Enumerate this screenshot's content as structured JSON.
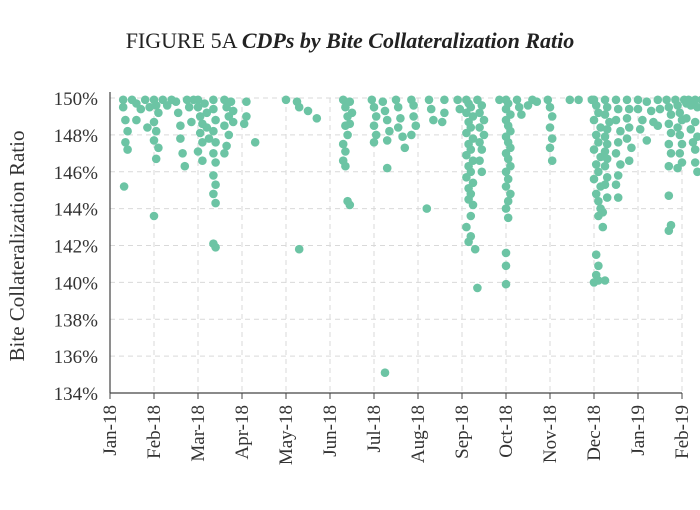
{
  "figure": {
    "label": "FIGURE 5A",
    "title": "CDPs by Bite Collateralization Ratio"
  },
  "colors": {
    "point": "#6cc4a4",
    "grid": "#d9d9d9",
    "axis": "#444444"
  },
  "chart_data": {
    "type": "scatter",
    "title": "FIGURE 5A CDPs by Bite Collateralization Ratio",
    "xlabel": "",
    "ylabel": "Bite Collateralization Ratio",
    "ylim": [
      134,
      150
    ],
    "xlim": [
      0,
      13
    ],
    "grid": true,
    "y_ticks": [
      134,
      136,
      138,
      140,
      142,
      144,
      146,
      148,
      150
    ],
    "y_tick_labels": [
      "134%",
      "136%",
      "138%",
      "140%",
      "142%",
      "144%",
      "146%",
      "148%",
      "150%"
    ],
    "x_ticks": [
      0,
      1,
      2,
      3,
      4,
      5,
      6,
      7,
      8,
      9,
      10,
      11,
      12,
      13
    ],
    "x_tick_labels": [
      "Jan-18",
      "Feb-18",
      "Mar-18",
      "Apr-18",
      "May-18",
      "Jun-18",
      "Jul-18",
      "Aug-18",
      "Sep-18",
      "Oct-18",
      "Nov-18",
      "Dec-18",
      "Jan-19",
      "Feb-19"
    ],
    "x_unit": "months since Jan-2018",
    "points": [
      [
        0.3,
        149.9
      ],
      [
        0.3,
        149.5
      ],
      [
        0.35,
        148.8
      ],
      [
        0.4,
        148.2
      ],
      [
        0.35,
        147.6
      ],
      [
        0.4,
        147.2
      ],
      [
        0.32,
        145.2
      ],
      [
        0.5,
        149.9
      ],
      [
        0.6,
        149.7
      ],
      [
        0.7,
        149.4
      ],
      [
        0.6,
        148.8
      ],
      [
        0.8,
        149.9
      ],
      [
        0.9,
        149.5
      ],
      [
        0.85,
        148.4
      ],
      [
        1.0,
        149.9
      ],
      [
        1.05,
        149.6
      ],
      [
        1.1,
        149.2
      ],
      [
        1.0,
        148.7
      ],
      [
        1.05,
        148.2
      ],
      [
        1.0,
        147.7
      ],
      [
        1.1,
        147.3
      ],
      [
        1.05,
        146.7
      ],
      [
        1.0,
        143.6
      ],
      [
        1.2,
        149.9
      ],
      [
        1.3,
        149.6
      ],
      [
        1.4,
        149.9
      ],
      [
        1.5,
        149.8
      ],
      [
        1.55,
        149.2
      ],
      [
        1.6,
        148.5
      ],
      [
        1.6,
        147.8
      ],
      [
        1.65,
        147.0
      ],
      [
        1.7,
        146.3
      ],
      [
        1.75,
        149.9
      ],
      [
        1.8,
        149.5
      ],
      [
        1.85,
        148.7
      ],
      [
        1.9,
        149.9
      ],
      [
        2.0,
        149.9
      ],
      [
        2.0,
        149.5
      ],
      [
        2.05,
        149.0
      ],
      [
        2.1,
        148.6
      ],
      [
        2.05,
        148.1
      ],
      [
        2.1,
        147.6
      ],
      [
        2.0,
        147.1
      ],
      [
        2.1,
        146.6
      ],
      [
        2.15,
        149.7
      ],
      [
        2.2,
        149.2
      ],
      [
        2.2,
        148.4
      ],
      [
        2.25,
        147.8
      ],
      [
        2.35,
        149.9
      ],
      [
        2.35,
        149.4
      ],
      [
        2.4,
        148.8
      ],
      [
        2.35,
        148.2
      ],
      [
        2.4,
        147.6
      ],
      [
        2.35,
        147.0
      ],
      [
        2.4,
        146.5
      ],
      [
        2.35,
        145.8
      ],
      [
        2.4,
        145.3
      ],
      [
        2.35,
        144.8
      ],
      [
        2.4,
        144.3
      ],
      [
        2.35,
        142.1
      ],
      [
        2.4,
        141.9
      ],
      [
        2.6,
        149.9
      ],
      [
        2.65,
        149.5
      ],
      [
        2.7,
        149.0
      ],
      [
        2.6,
        148.5
      ],
      [
        2.7,
        148.0
      ],
      [
        2.65,
        147.4
      ],
      [
        2.6,
        147.0
      ],
      [
        2.75,
        149.8
      ],
      [
        2.8,
        149.3
      ],
      [
        2.8,
        148.7
      ],
      [
        3.1,
        149.8
      ],
      [
        3.1,
        149.0
      ],
      [
        3.05,
        148.6
      ],
      [
        3.3,
        147.6
      ],
      [
        4.0,
        149.9
      ],
      [
        4.25,
        149.8
      ],
      [
        4.3,
        149.5
      ],
      [
        4.5,
        149.3
      ],
      [
        4.7,
        148.9
      ],
      [
        4.3,
        141.8
      ],
      [
        5.3,
        149.9
      ],
      [
        5.35,
        149.5
      ],
      [
        5.4,
        149.0
      ],
      [
        5.35,
        148.5
      ],
      [
        5.4,
        148.0
      ],
      [
        5.3,
        147.5
      ],
      [
        5.35,
        147.1
      ],
      [
        5.3,
        146.6
      ],
      [
        5.35,
        146.3
      ],
      [
        5.45,
        149.8
      ],
      [
        5.5,
        149.2
      ],
      [
        5.45,
        148.6
      ],
      [
        5.4,
        144.4
      ],
      [
        5.45,
        144.2
      ],
      [
        5.95,
        149.9
      ],
      [
        6.0,
        149.5
      ],
      [
        6.05,
        149.0
      ],
      [
        6.0,
        148.5
      ],
      [
        6.05,
        148.0
      ],
      [
        6.0,
        147.6
      ],
      [
        6.2,
        149.8
      ],
      [
        6.25,
        149.3
      ],
      [
        6.3,
        148.8
      ],
      [
        6.35,
        148.2
      ],
      [
        6.3,
        147.7
      ],
      [
        6.3,
        146.2
      ],
      [
        6.25,
        135.1
      ],
      [
        6.5,
        149.9
      ],
      [
        6.55,
        149.5
      ],
      [
        6.6,
        148.9
      ],
      [
        6.55,
        148.4
      ],
      [
        6.65,
        147.9
      ],
      [
        6.7,
        147.3
      ],
      [
        6.85,
        149.9
      ],
      [
        6.9,
        149.6
      ],
      [
        6.9,
        149.0
      ],
      [
        6.95,
        148.5
      ],
      [
        6.85,
        148.0
      ],
      [
        7.25,
        149.9
      ],
      [
        7.3,
        149.4
      ],
      [
        7.35,
        148.8
      ],
      [
        7.2,
        144.0
      ],
      [
        7.6,
        149.9
      ],
      [
        7.6,
        149.2
      ],
      [
        7.55,
        148.7
      ],
      [
        7.9,
        149.9
      ],
      [
        7.95,
        149.4
      ],
      [
        8.1,
        149.9
      ],
      [
        8.15,
        149.7
      ],
      [
        8.2,
        149.5
      ],
      [
        8.1,
        149.2
      ],
      [
        8.25,
        149.0
      ],
      [
        8.15,
        148.7
      ],
      [
        8.2,
        148.4
      ],
      [
        8.1,
        148.1
      ],
      [
        8.25,
        147.8
      ],
      [
        8.15,
        147.5
      ],
      [
        8.2,
        147.2
      ],
      [
        8.1,
        146.9
      ],
      [
        8.25,
        146.6
      ],
      [
        8.15,
        146.3
      ],
      [
        8.2,
        146.0
      ],
      [
        8.1,
        145.7
      ],
      [
        8.25,
        145.4
      ],
      [
        8.15,
        145.1
      ],
      [
        8.2,
        144.8
      ],
      [
        8.15,
        144.5
      ],
      [
        8.25,
        144.2
      ],
      [
        8.2,
        143.6
      ],
      [
        8.1,
        143.0
      ],
      [
        8.2,
        142.5
      ],
      [
        8.15,
        142.2
      ],
      [
        8.3,
        141.8
      ],
      [
        8.35,
        139.7
      ],
      [
        8.35,
        149.9
      ],
      [
        8.45,
        149.6
      ],
      [
        8.4,
        149.2
      ],
      [
        8.5,
        148.8
      ],
      [
        8.4,
        148.4
      ],
      [
        8.5,
        148.0
      ],
      [
        8.4,
        147.6
      ],
      [
        8.45,
        147.2
      ],
      [
        8.4,
        146.6
      ],
      [
        8.45,
        146.0
      ],
      [
        8.85,
        149.9
      ],
      [
        9.0,
        149.9
      ],
      [
        9.05,
        149.7
      ],
      [
        9.0,
        149.4
      ],
      [
        9.1,
        149.1
      ],
      [
        9.0,
        148.8
      ],
      [
        9.05,
        148.5
      ],
      [
        9.1,
        148.2
      ],
      [
        9.0,
        147.9
      ],
      [
        9.05,
        147.6
      ],
      [
        9.1,
        147.3
      ],
      [
        9.0,
        147.0
      ],
      [
        9.05,
        146.7
      ],
      [
        9.1,
        146.3
      ],
      [
        9.0,
        146.0
      ],
      [
        9.05,
        145.6
      ],
      [
        9.0,
        145.2
      ],
      [
        9.1,
        144.8
      ],
      [
        9.05,
        144.4
      ],
      [
        9.0,
        144.0
      ],
      [
        9.05,
        143.5
      ],
      [
        9.0,
        141.6
      ],
      [
        9.0,
        140.9
      ],
      [
        9.0,
        139.9
      ],
      [
        9.25,
        149.9
      ],
      [
        9.3,
        149.5
      ],
      [
        9.35,
        149.1
      ],
      [
        9.5,
        149.6
      ],
      [
        9.6,
        149.9
      ],
      [
        9.7,
        149.8
      ],
      [
        9.95,
        149.9
      ],
      [
        10.0,
        149.5
      ],
      [
        10.05,
        149.0
      ],
      [
        10.0,
        148.4
      ],
      [
        10.05,
        147.8
      ],
      [
        10.0,
        147.3
      ],
      [
        10.05,
        146.6
      ],
      [
        10.45,
        149.9
      ],
      [
        10.65,
        149.9
      ],
      [
        10.95,
        149.9
      ],
      [
        11.0,
        149.9
      ],
      [
        11.05,
        149.6
      ],
      [
        11.1,
        149.2
      ],
      [
        11.0,
        148.8
      ],
      [
        11.15,
        148.4
      ],
      [
        11.05,
        148.0
      ],
      [
        11.1,
        147.6
      ],
      [
        11.0,
        147.2
      ],
      [
        11.15,
        146.8
      ],
      [
        11.05,
        146.4
      ],
      [
        11.1,
        146.0
      ],
      [
        11.0,
        145.6
      ],
      [
        11.15,
        145.2
      ],
      [
        11.05,
        144.8
      ],
      [
        11.1,
        144.4
      ],
      [
        11.15,
        144.0
      ],
      [
        11.1,
        143.6
      ],
      [
        11.2,
        143.0
      ],
      [
        11.05,
        141.5
      ],
      [
        11.1,
        140.9
      ],
      [
        11.05,
        140.4
      ],
      [
        11.1,
        140.1
      ],
      [
        11.0,
        140.0
      ],
      [
        11.25,
        140.1
      ],
      [
        11.25,
        149.9
      ],
      [
        11.3,
        149.5
      ],
      [
        11.25,
        149.1
      ],
      [
        11.35,
        148.7
      ],
      [
        11.3,
        148.3
      ],
      [
        11.25,
        147.9
      ],
      [
        11.3,
        147.5
      ],
      [
        11.25,
        147.1
      ],
      [
        11.3,
        146.7
      ],
      [
        11.25,
        146.3
      ],
      [
        11.3,
        145.7
      ],
      [
        11.25,
        145.3
      ],
      [
        11.3,
        144.6
      ],
      [
        11.2,
        143.8
      ],
      [
        11.5,
        149.9
      ],
      [
        11.55,
        149.4
      ],
      [
        11.5,
        148.8
      ],
      [
        11.6,
        148.2
      ],
      [
        11.55,
        147.6
      ],
      [
        11.5,
        147.0
      ],
      [
        11.6,
        146.4
      ],
      [
        11.55,
        145.8
      ],
      [
        11.5,
        145.3
      ],
      [
        11.55,
        144.6
      ],
      [
        11.75,
        149.9
      ],
      [
        11.8,
        149.4
      ],
      [
        11.75,
        148.9
      ],
      [
        11.8,
        148.4
      ],
      [
        11.75,
        147.8
      ],
      [
        11.85,
        147.3
      ],
      [
        11.8,
        146.6
      ],
      [
        12.0,
        149.9
      ],
      [
        12.0,
        149.4
      ],
      [
        12.1,
        148.8
      ],
      [
        12.05,
        148.3
      ],
      [
        12.2,
        149.8
      ],
      [
        12.3,
        149.3
      ],
      [
        12.35,
        148.7
      ],
      [
        12.2,
        147.7
      ],
      [
        12.45,
        149.9
      ],
      [
        12.5,
        149.4
      ],
      [
        12.45,
        148.5
      ],
      [
        12.65,
        149.9
      ],
      [
        12.7,
        149.5
      ],
      [
        12.75,
        149.1
      ],
      [
        12.7,
        148.6
      ],
      [
        12.75,
        148.1
      ],
      [
        12.7,
        147.5
      ],
      [
        12.75,
        147.0
      ],
      [
        12.7,
        146.3
      ],
      [
        12.7,
        144.7
      ],
      [
        12.75,
        143.1
      ],
      [
        12.7,
        142.8
      ],
      [
        12.85,
        149.9
      ],
      [
        12.9,
        149.6
      ],
      [
        12.95,
        149.2
      ],
      [
        13.0,
        148.8
      ],
      [
        12.9,
        148.4
      ],
      [
        12.95,
        148.0
      ],
      [
        13.0,
        147.5
      ],
      [
        12.95,
        147.0
      ],
      [
        13.0,
        146.5
      ],
      [
        12.9,
        146.2
      ],
      [
        13.05,
        149.9
      ],
      [
        13.1,
        149.7
      ],
      [
        13.15,
        149.9
      ],
      [
        13.2,
        149.6
      ],
      [
        13.1,
        148.9
      ],
      [
        13.2,
        148.3
      ],
      [
        13.25,
        147.6
      ],
      [
        13.3,
        149.9
      ],
      [
        13.35,
        149.5
      ],
      [
        13.3,
        148.7
      ],
      [
        13.35,
        147.9
      ],
      [
        13.3,
        147.2
      ],
      [
        13.3,
        146.5
      ],
      [
        13.35,
        146.0
      ],
      [
        13.45,
        149.9
      ],
      [
        13.5,
        149.7
      ],
      [
        13.55,
        149.9
      ],
      [
        13.6,
        149.5
      ]
    ]
  }
}
